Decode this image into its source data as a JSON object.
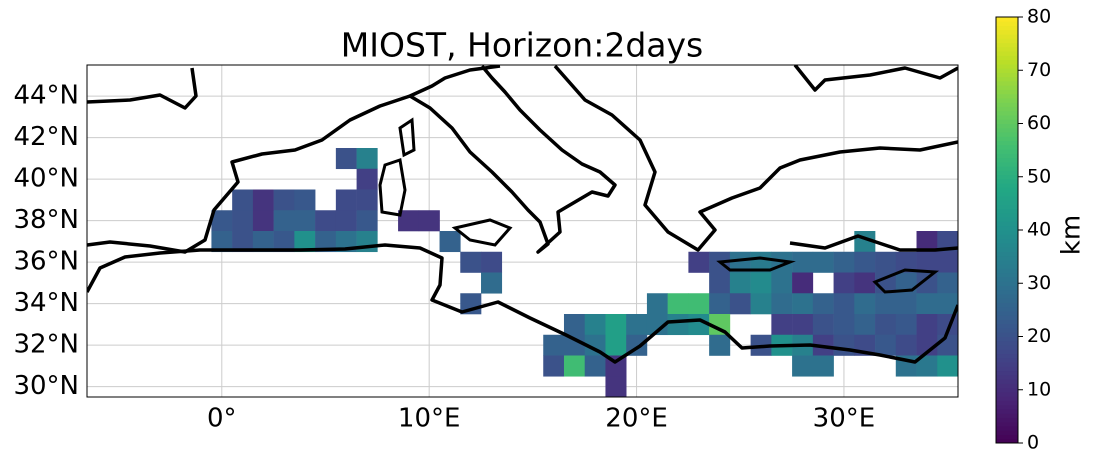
{
  "chart_data": {
    "type": "heatmap",
    "title": "MIOST, Horizon:2days",
    "xlim": [
      -6.5,
      35.5
    ],
    "ylim": [
      29.5,
      45.5
    ],
    "xticks": [
      {
        "value": 0,
        "label": "0°"
      },
      {
        "value": 10,
        "label": "10°E"
      },
      {
        "value": 20,
        "label": "20°E"
      },
      {
        "value": 30,
        "label": "30°E"
      }
    ],
    "yticks": [
      {
        "value": 30,
        "label": "30°N"
      },
      {
        "value": 32,
        "label": "32°N"
      },
      {
        "value": 34,
        "label": "34°N"
      },
      {
        "value": 36,
        "label": "36°N"
      },
      {
        "value": 38,
        "label": "38°N"
      },
      {
        "value": 40,
        "label": "40°N"
      },
      {
        "value": 42,
        "label": "42°N"
      },
      {
        "value": 44,
        "label": "44°N"
      }
    ],
    "grid": true,
    "colormap": "viridis",
    "clim": [
      0,
      80
    ],
    "cticks": [
      0,
      10,
      20,
      30,
      40,
      50,
      60,
      70,
      80
    ],
    "colorbar_label": "km",
    "cells": [
      [
        6,
        41,
        20
      ],
      [
        7,
        41,
        35
      ],
      [
        7,
        40,
        15
      ],
      [
        1,
        39,
        20
      ],
      [
        2,
        39,
        12
      ],
      [
        3,
        39,
        20
      ],
      [
        4,
        39,
        22
      ],
      [
        6,
        39,
        18
      ],
      [
        7,
        39,
        18
      ],
      [
        0,
        38,
        22
      ],
      [
        1,
        38,
        20
      ],
      [
        2,
        38,
        12
      ],
      [
        3,
        38,
        25
      ],
      [
        4,
        38,
        25
      ],
      [
        5,
        38,
        18
      ],
      [
        6,
        38,
        18
      ],
      [
        7,
        38,
        22
      ],
      [
        9,
        38,
        12
      ],
      [
        10,
        38,
        12
      ],
      [
        0,
        37,
        25
      ],
      [
        1,
        37,
        20
      ],
      [
        2,
        37,
        25
      ],
      [
        3,
        37,
        22
      ],
      [
        4,
        37,
        40
      ],
      [
        5,
        37,
        25
      ],
      [
        6,
        37,
        30
      ],
      [
        7,
        37,
        35
      ],
      [
        11,
        37,
        25
      ],
      [
        31,
        37,
        35
      ],
      [
        34,
        37,
        10
      ],
      [
        35,
        37,
        18
      ],
      [
        12,
        36,
        20
      ],
      [
        13,
        36,
        18
      ],
      [
        23,
        36,
        15
      ],
      [
        24,
        36,
        20
      ],
      [
        25,
        36,
        30
      ],
      [
        26,
        36,
        33
      ],
      [
        27,
        36,
        30
      ],
      [
        28,
        36,
        28
      ],
      [
        29,
        36,
        28
      ],
      [
        30,
        36,
        25
      ],
      [
        31,
        36,
        22
      ],
      [
        32,
        36,
        20
      ],
      [
        33,
        36,
        18
      ],
      [
        34,
        36,
        17
      ],
      [
        35,
        36,
        17
      ],
      [
        13,
        35,
        28
      ],
      [
        24,
        35,
        20
      ],
      [
        25,
        35,
        35
      ],
      [
        26,
        35,
        38
      ],
      [
        27,
        35,
        30
      ],
      [
        28,
        35,
        10
      ],
      [
        30,
        35,
        15
      ],
      [
        31,
        35,
        12
      ],
      [
        32,
        35,
        20
      ],
      [
        33,
        35,
        25
      ],
      [
        34,
        35,
        20
      ],
      [
        35,
        35,
        25
      ],
      [
        12,
        34,
        22
      ],
      [
        21,
        34,
        30
      ],
      [
        22,
        34,
        55
      ],
      [
        23,
        34,
        55
      ],
      [
        24,
        34,
        25
      ],
      [
        25,
        34,
        20
      ],
      [
        26,
        34,
        35
      ],
      [
        27,
        34,
        28
      ],
      [
        28,
        34,
        30
      ],
      [
        29,
        34,
        25
      ],
      [
        30,
        34,
        22
      ],
      [
        31,
        34,
        28
      ],
      [
        32,
        34,
        25
      ],
      [
        33,
        34,
        25
      ],
      [
        34,
        34,
        28
      ],
      [
        35,
        34,
        28
      ],
      [
        17,
        33,
        25
      ],
      [
        18,
        33,
        35
      ],
      [
        19,
        33,
        45
      ],
      [
        20,
        33,
        30
      ],
      [
        21,
        33,
        30
      ],
      [
        22,
        33,
        35
      ],
      [
        23,
        33,
        38
      ],
      [
        24,
        33,
        60
      ],
      [
        27,
        33,
        15
      ],
      [
        28,
        33,
        15
      ],
      [
        29,
        33,
        20
      ],
      [
        30,
        33,
        22
      ],
      [
        31,
        33,
        25
      ],
      [
        32,
        33,
        20
      ],
      [
        33,
        33,
        22
      ],
      [
        34,
        33,
        15
      ],
      [
        35,
        33,
        18
      ],
      [
        16,
        32,
        25
      ],
      [
        17,
        32,
        25
      ],
      [
        18,
        32,
        30
      ],
      [
        19,
        32,
        45
      ],
      [
        20,
        32,
        25
      ],
      [
        24,
        32,
        28
      ],
      [
        26,
        32,
        20
      ],
      [
        27,
        32,
        40
      ],
      [
        28,
        32,
        35
      ],
      [
        29,
        32,
        15
      ],
      [
        30,
        32,
        20
      ],
      [
        31,
        32,
        18
      ],
      [
        32,
        32,
        22
      ],
      [
        33,
        32,
        18
      ],
      [
        34,
        32,
        15
      ],
      [
        35,
        32,
        20
      ],
      [
        16,
        31,
        20
      ],
      [
        17,
        31,
        55
      ],
      [
        18,
        31,
        25
      ],
      [
        19,
        31,
        12
      ],
      [
        28,
        31,
        30
      ],
      [
        29,
        31,
        30
      ],
      [
        33,
        31,
        30
      ],
      [
        34,
        31,
        32
      ],
      [
        35,
        31,
        40
      ],
      [
        19,
        30,
        12
      ]
    ]
  }
}
